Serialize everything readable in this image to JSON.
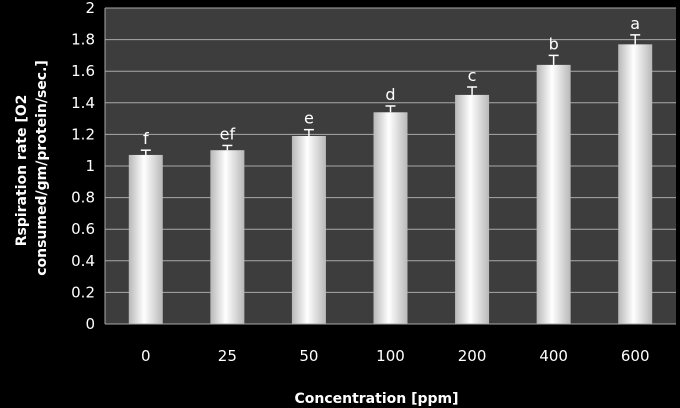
{
  "chart_data": {
    "type": "bar",
    "title": "",
    "xlabel": "Concentration [ppm]",
    "ylabel_lines": [
      "Rspiration rate [O2",
      "consumed/gm/protein/sec.]"
    ],
    "categories": [
      "0",
      "25",
      "50",
      "100",
      "200",
      "400",
      "600"
    ],
    "values": [
      1.07,
      1.1,
      1.19,
      1.34,
      1.45,
      1.64,
      1.77
    ],
    "error": [
      0.03,
      0.03,
      0.04,
      0.04,
      0.05,
      0.06,
      0.06
    ],
    "significance_labels": [
      "f",
      "ef",
      "e",
      "d",
      "c",
      "b",
      "a"
    ],
    "ylim": [
      0,
      2
    ],
    "yticks": [
      "0",
      "0.2",
      "0.4",
      "0.6",
      "0.8",
      "1",
      "1.2",
      "1.4",
      "1.6",
      "1.8",
      "2"
    ],
    "grid": true,
    "legend": "none",
    "colors": {
      "background": "#000000",
      "plot_area": "#3d3d3d",
      "gridline": "#a9a9a9",
      "bar_edge": "#b8b8b8",
      "bar_center": "#ffffff",
      "text": "#ffffff"
    }
  }
}
